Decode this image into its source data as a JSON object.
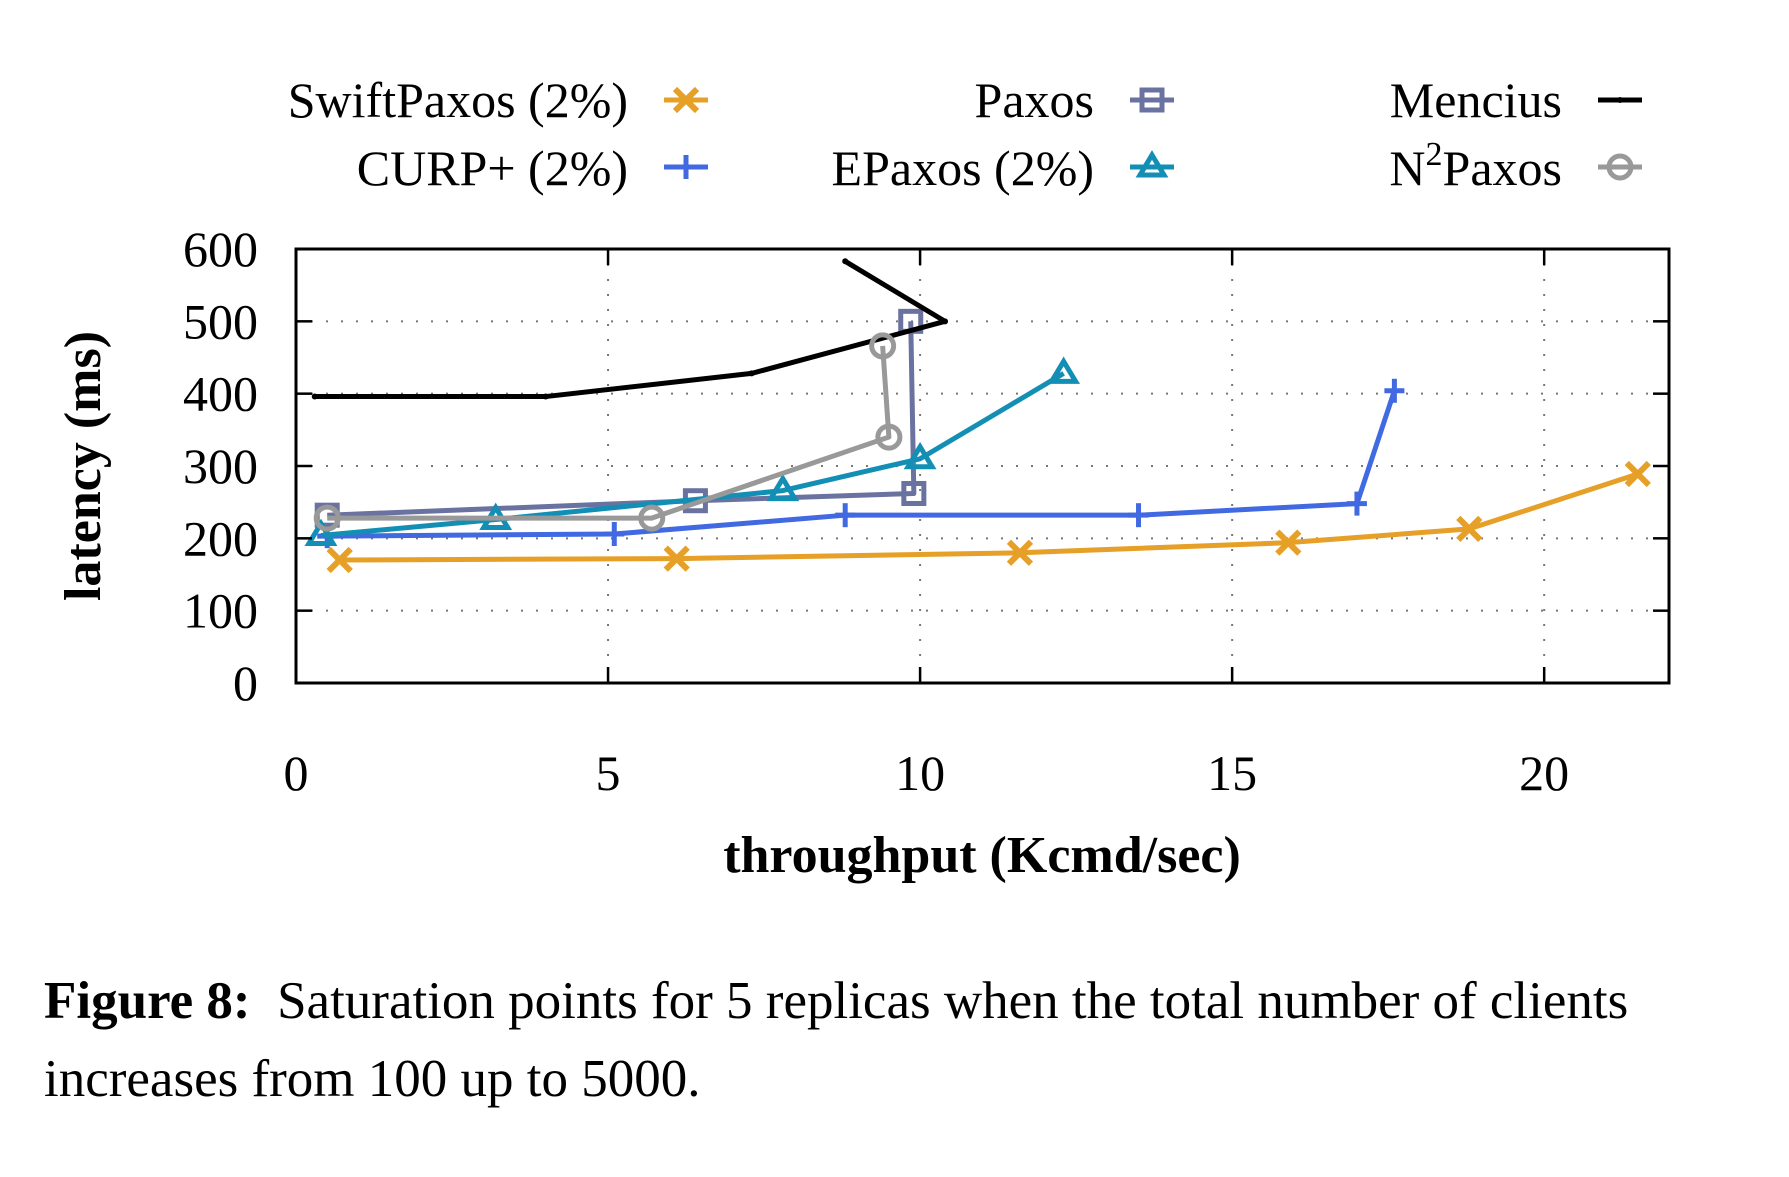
{
  "chart_data": {
    "type": "line",
    "title": "",
    "xlabel": "throughput (Kcmd/sec)",
    "ylabel": "latency (ms)",
    "xlim": [
      0,
      22
    ],
    "ylim": [
      0,
      600
    ],
    "xticks": [
      0,
      5,
      10,
      15,
      20
    ],
    "yticks": [
      0,
      100,
      200,
      300,
      400,
      500,
      600
    ],
    "xtick_labels": [
      "0",
      "5",
      "10",
      "15",
      "20"
    ],
    "ytick_labels": [
      "0",
      "100",
      "200",
      "300",
      "400",
      "500",
      "600"
    ],
    "grid": true,
    "legend_position": "top",
    "series": [
      {
        "name": "SwiftPaxos (2%)",
        "color": "#e69f27",
        "marker": "x",
        "points": [
          [
            0.7,
            170
          ],
          [
            6.1,
            172
          ],
          [
            11.6,
            180
          ],
          [
            15.9,
            194
          ],
          [
            18.8,
            213
          ],
          [
            21.5,
            289
          ]
        ]
      },
      {
        "name": "CURP+ (2%)",
        "color": "#4169e1",
        "marker": "plus",
        "points": [
          [
            0.5,
            203
          ],
          [
            5.1,
            206
          ],
          [
            8.8,
            232
          ],
          [
            13.5,
            232
          ],
          [
            17.0,
            248
          ],
          [
            17.6,
            404
          ]
        ]
      },
      {
        "name": "Paxos",
        "color": "#6a72a0",
        "marker": "square",
        "points": [
          [
            0.5,
            232
          ],
          [
            6.4,
            252
          ],
          [
            9.9,
            262
          ],
          [
            9.85,
            500
          ]
        ]
      },
      {
        "name": "EPaxos (2%)",
        "color": "#138fb5",
        "marker": "triangle",
        "points": [
          [
            0.4,
            204
          ],
          [
            3.2,
            226
          ],
          [
            7.8,
            266
          ],
          [
            10.0,
            310
          ],
          [
            12.3,
            428
          ]
        ]
      },
      {
        "name": "Mencius",
        "color": "#000000",
        "marker": "dot",
        "points": [
          [
            0.3,
            396
          ],
          [
            4.0,
            396
          ],
          [
            7.3,
            428
          ],
          [
            10.4,
            500
          ],
          [
            8.8,
            583
          ]
        ]
      },
      {
        "name": "N2Paxos",
        "color": "#999999",
        "marker": "circle",
        "points": [
          [
            0.5,
            228
          ],
          [
            5.7,
            228
          ],
          [
            9.5,
            340
          ],
          [
            9.4,
            466
          ]
        ]
      }
    ]
  },
  "legend": {
    "items": [
      {
        "label": "SwiftPaxos (2%)"
      },
      {
        "label": "Paxos"
      },
      {
        "label": "Mencius"
      },
      {
        "label": "CURP+ (2%)"
      },
      {
        "label": "EPaxos (2%)"
      },
      {
        "label_base": "N",
        "label_sup": "2",
        "label_rest": "Paxos"
      }
    ]
  },
  "caption": {
    "figure_label": "Figure 8:",
    "text": "Saturation points for 5 replicas when the total number of clients increases from 100 up to 5000."
  }
}
